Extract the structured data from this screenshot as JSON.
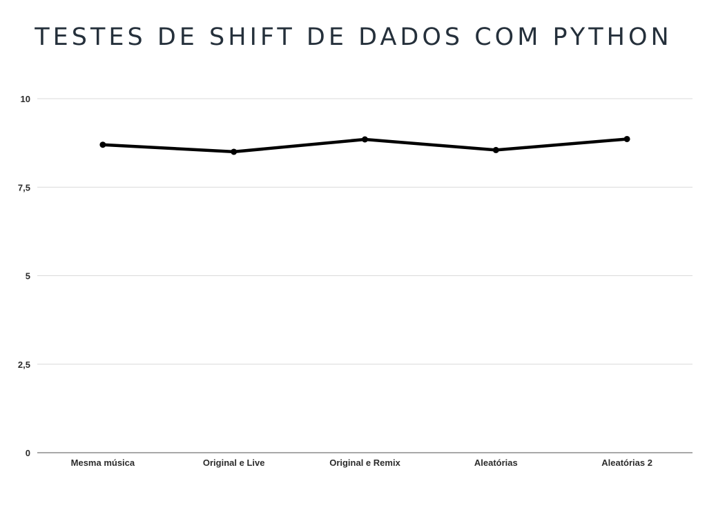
{
  "chart_data": {
    "type": "line",
    "title": "TESTES DE SHIFT DE DADOS COM PYTHON",
    "xlabel": "",
    "ylabel": "",
    "categories": [
      "Mesma música",
      "Original e Live",
      "Original e Remix",
      "Aleatórias",
      "Aleatórias 2"
    ],
    "series": [
      {
        "values": [
          8.7,
          8.5,
          8.85,
          8.55,
          8.86
        ]
      }
    ],
    "yticks": [
      0,
      2.5,
      5,
      7.5,
      10
    ],
    "ytick_labels": [
      "0",
      "2,5",
      "5",
      "7,5",
      "10"
    ],
    "ylim": [
      0,
      10
    ],
    "grid": true,
    "legend": "none",
    "colors": {
      "line": "#000000",
      "grid": "#d9d9d9",
      "axis": "#8c8c8c",
      "title": "#25303b"
    }
  }
}
